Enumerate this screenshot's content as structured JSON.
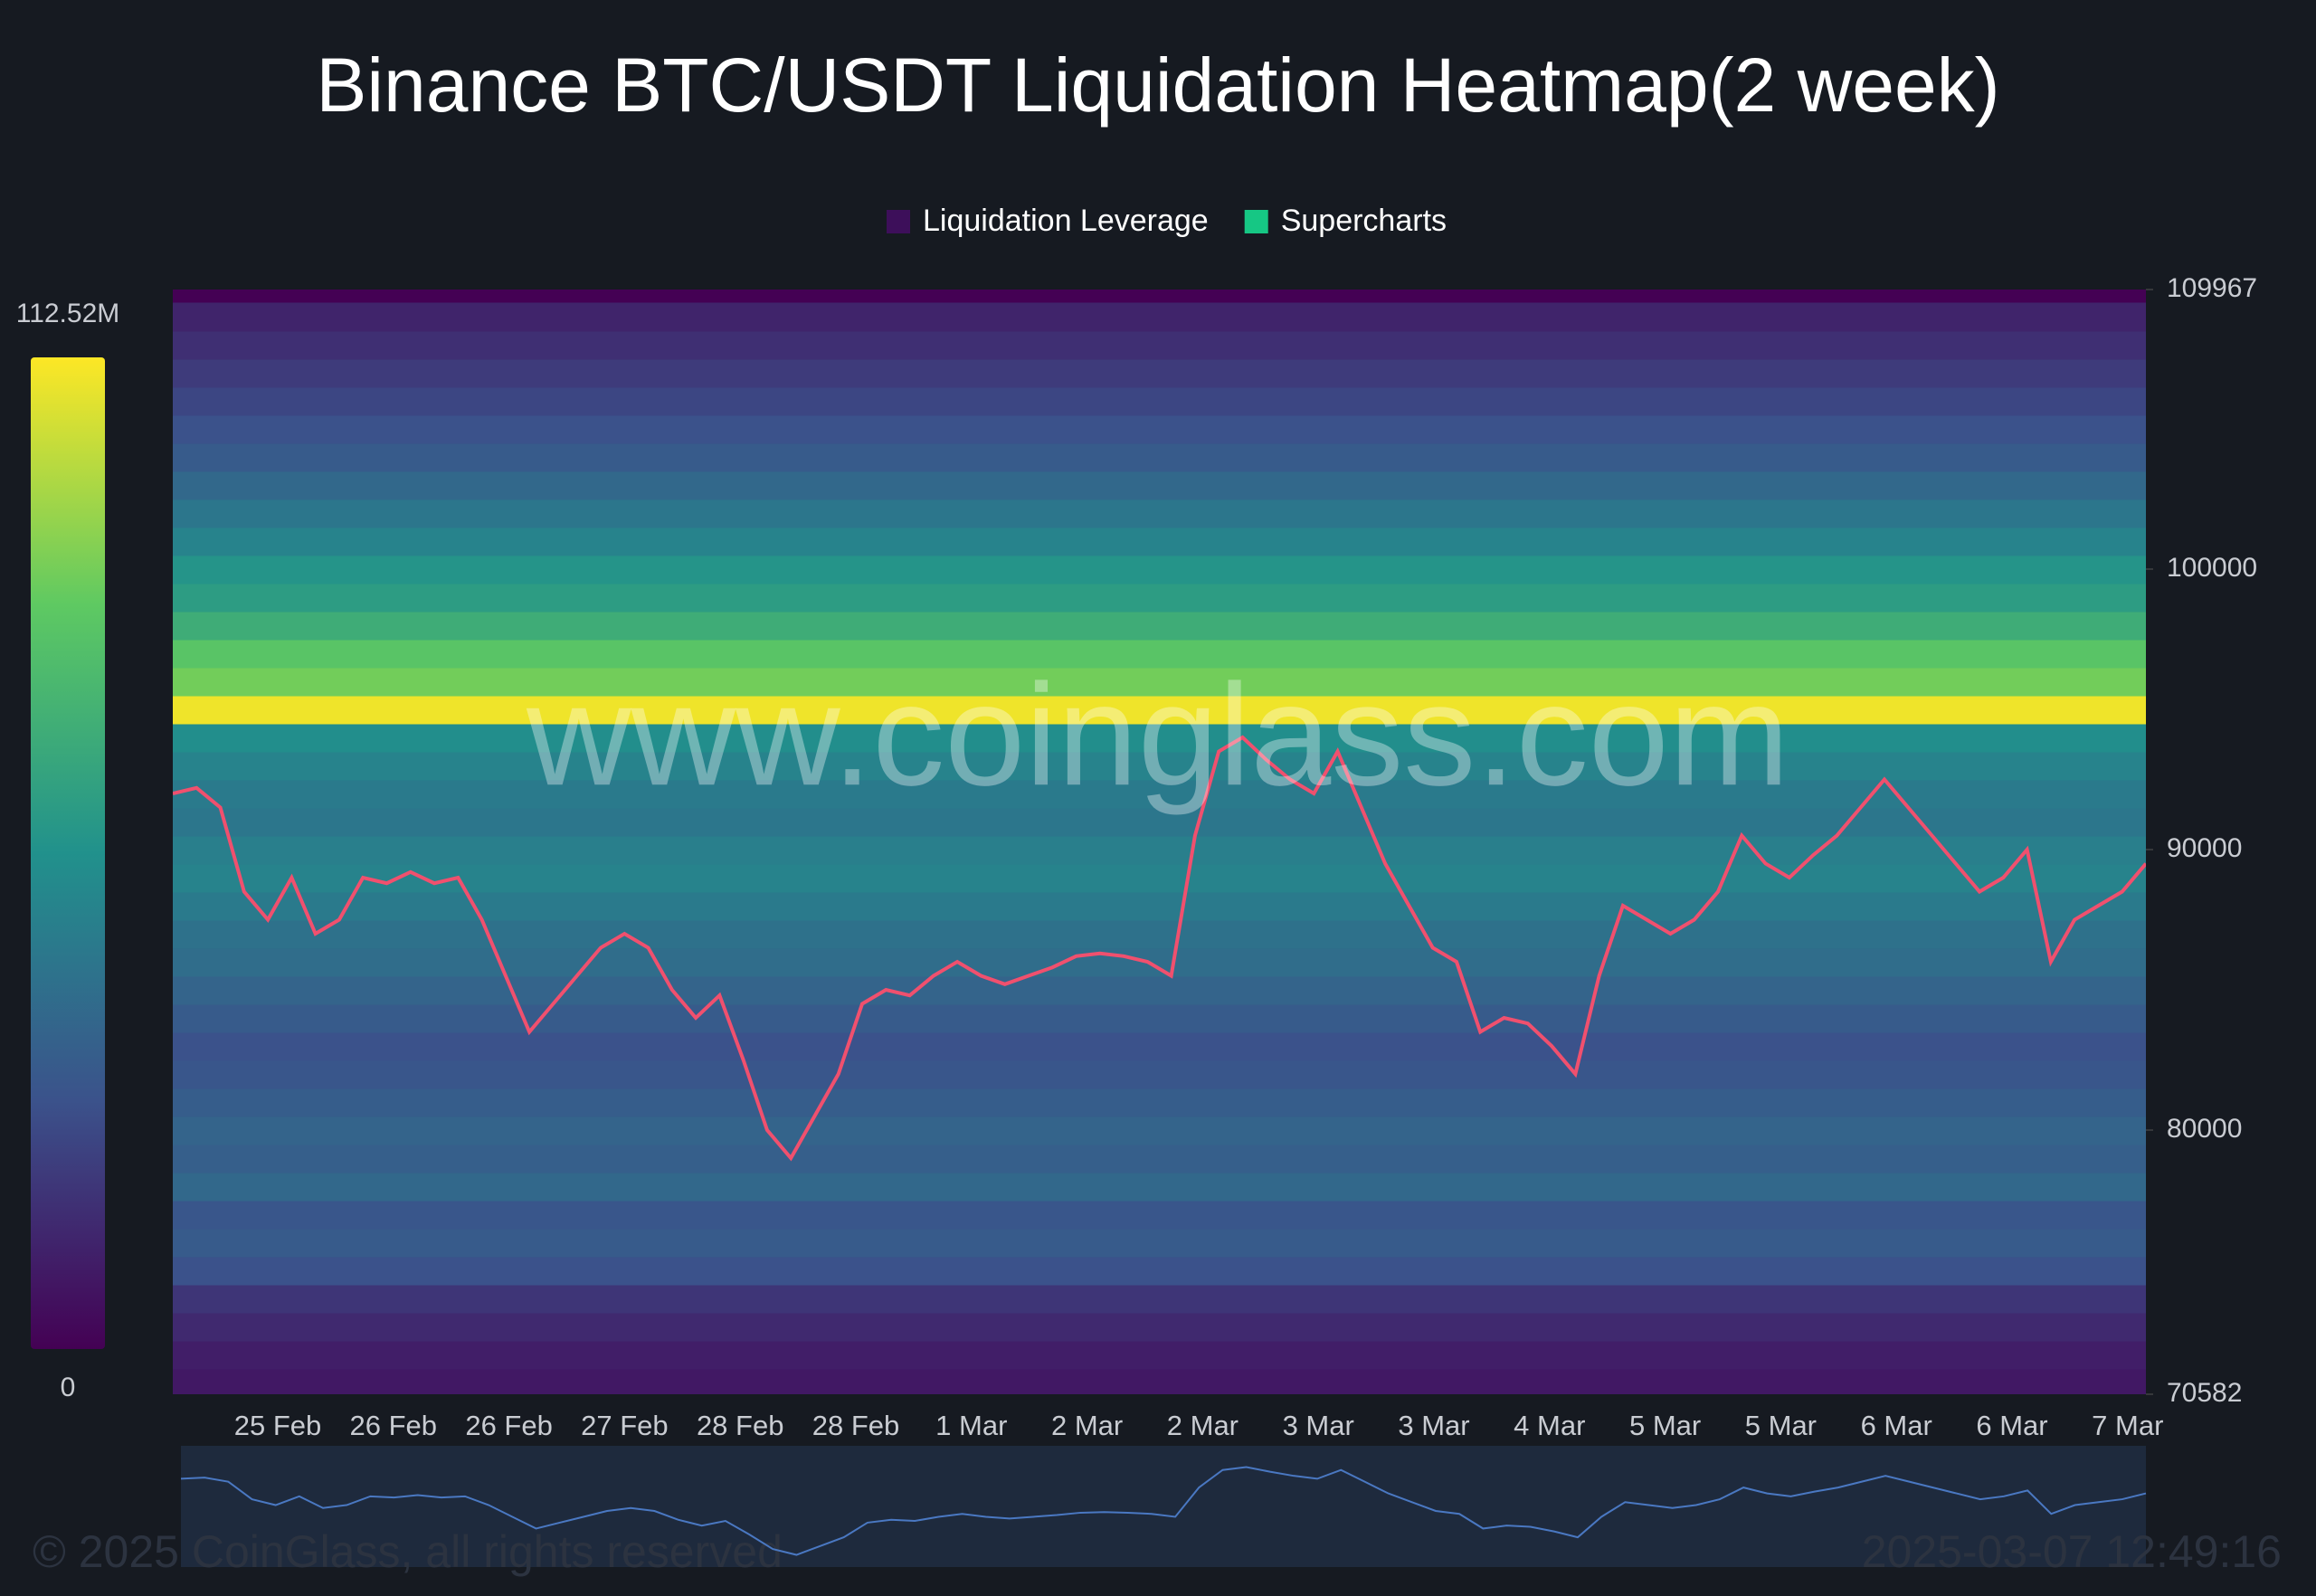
{
  "chart_data": {
    "type": "heatmap",
    "title": "Binance BTC/USDT Liquidation Heatmap(2 week)",
    "series": [
      {
        "name": "Liquidation Leverage",
        "color": "#3d0f5a"
      },
      {
        "name": "Supercharts",
        "color": "#16c784"
      }
    ],
    "ylim": [
      70582,
      109967
    ],
    "yticks": [
      109967,
      100000,
      90000,
      80000,
      70582
    ],
    "categories": [
      "25 Feb",
      "26 Feb",
      "26 Feb",
      "27 Feb",
      "28 Feb",
      "28 Feb",
      "1 Mar",
      "2 Mar",
      "2 Mar",
      "3 Mar",
      "3 Mar",
      "4 Mar",
      "5 Mar",
      "5 Mar",
      "6 Mar",
      "6 Mar",
      "7 Mar"
    ],
    "heat_levels": [
      71000,
      72000,
      73000,
      74000,
      75000,
      76000,
      77000,
      78000,
      79000,
      80000,
      81000,
      82000,
      83000,
      84000,
      85000,
      86000,
      87000,
      88000,
      89000,
      90000,
      91000,
      92000,
      93000,
      94000,
      95000,
      96000,
      97000,
      98000,
      99000,
      100000,
      101000,
      102000,
      103000,
      104000,
      105000,
      106000,
      107000,
      108000,
      109000
    ],
    "heat_values": [
      8000000,
      10000000,
      14000000,
      18000000,
      28000000,
      32000000,
      30000000,
      38000000,
      34000000,
      36000000,
      33000000,
      30000000,
      28000000,
      32000000,
      36000000,
      40000000,
      42000000,
      46000000,
      50000000,
      48000000,
      44000000,
      46000000,
      50000000,
      55000000,
      110000000,
      88000000,
      82000000,
      70000000,
      62000000,
      58000000,
      50000000,
      44000000,
      38000000,
      32000000,
      28000000,
      24000000,
      20000000,
      16000000,
      12000000
    ],
    "price": [
      92000,
      92200,
      91500,
      88500,
      87500,
      89000,
      87000,
      87500,
      89000,
      88800,
      89200,
      88800,
      89000,
      87500,
      85500,
      83500,
      84500,
      85500,
      86500,
      87000,
      86500,
      85000,
      84000,
      84800,
      82500,
      80000,
      79000,
      80500,
      82000,
      84500,
      85000,
      84800,
      85500,
      86000,
      85500,
      85200,
      85500,
      85800,
      86200,
      86300,
      86200,
      86000,
      85500,
      90500,
      93500,
      94000,
      93200,
      92500,
      92000,
      93500,
      91500,
      89500,
      88000,
      86500,
      86000,
      83500,
      84000,
      83800,
      83000,
      82000,
      85500,
      88000,
      87500,
      87000,
      87500,
      88500,
      90500,
      89500,
      89000,
      89800,
      90500,
      91500,
      92500,
      91500,
      90500,
      89500,
      88500,
      89000,
      90000,
      86000,
      87500,
      88000,
      88500,
      89500
    ],
    "colorbar": {
      "range": [
        0,
        112520000
      ],
      "ticks": [
        {
          "value": 112520000,
          "label": "112.52M"
        },
        0
      ]
    },
    "watermark": "www.coinglass.com",
    "copyright": "© 2025 CoinGlass, all rights reserved",
    "timestamp": "2025-03-07 12:49:16"
  }
}
